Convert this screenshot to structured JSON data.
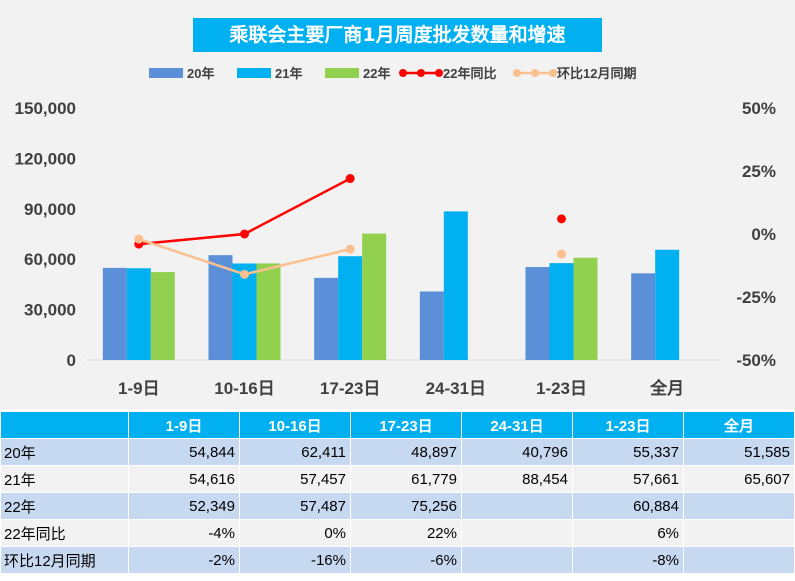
{
  "title": "乘联会主要厂商1月周度批发数量和增速",
  "colors": {
    "s20": "#5b8fd8",
    "s21": "#00b0f0",
    "s22": "#92d050",
    "yoy": "#ff0000",
    "mom": "#fac090"
  },
  "chart_data": {
    "type": "bar",
    "title": "乘联会主要厂商1月周度批发数量和增速",
    "categories": [
      "1-9日",
      "10-16日",
      "17-23日",
      "24-31日",
      "1-23日",
      "全月"
    ],
    "series": [
      {
        "name": "20年",
        "type": "bar",
        "axis": "left",
        "values": [
          54844,
          62411,
          48897,
          40796,
          55337,
          51585
        ]
      },
      {
        "name": "21年",
        "type": "bar",
        "axis": "left",
        "values": [
          54616,
          57457,
          61779,
          88454,
          57661,
          65607
        ]
      },
      {
        "name": "22年",
        "type": "bar",
        "axis": "left",
        "values": [
          52349,
          57487,
          75256,
          null,
          60884,
          null
        ]
      },
      {
        "name": "22年同比",
        "type": "line",
        "axis": "right",
        "values": [
          -0.04,
          0.0,
          0.22,
          null,
          0.06,
          null
        ]
      },
      {
        "name": "环比12月同期",
        "type": "line",
        "axis": "right",
        "values": [
          -0.02,
          -0.16,
          -0.06,
          null,
          -0.08,
          null
        ]
      }
    ],
    "ylim_left": [
      0,
      150000
    ],
    "yticks_left": [
      "0",
      "30,000",
      "60,000",
      "90,000",
      "120,000",
      "150,000"
    ],
    "ylim_right": [
      -0.5,
      0.5
    ],
    "yticks_right": [
      "-50%",
      "-25%",
      "0%",
      "25%",
      "50%"
    ],
    "legend": "top",
    "grid": false
  },
  "table": {
    "headers": [
      "1-9日",
      "10-16日",
      "17-23日",
      "24-31日",
      "1-23日",
      "全月"
    ],
    "rows": [
      {
        "label": "20年",
        "cells": [
          "54,844",
          "62,411",
          "48,897",
          "40,796",
          "55,337",
          "51,585"
        ]
      },
      {
        "label": "21年",
        "cells": [
          "54,616",
          "57,457",
          "61,779",
          "88,454",
          "57,661",
          "65,607"
        ]
      },
      {
        "label": "22年",
        "cells": [
          "52,349",
          "57,487",
          "75,256",
          "",
          "60,884",
          ""
        ]
      },
      {
        "label": "22年同比",
        "cells": [
          "-4%",
          "0%",
          "22%",
          "",
          "6%",
          ""
        ]
      },
      {
        "label": "环比12月同期",
        "cells": [
          "-2%",
          "-16%",
          "-6%",
          "",
          "-8%",
          ""
        ]
      }
    ]
  }
}
